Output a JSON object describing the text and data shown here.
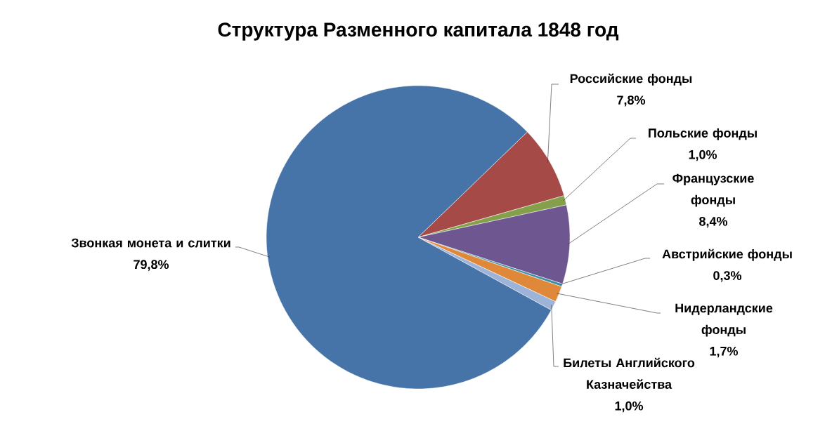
{
  "chart_data": {
    "type": "pie",
    "title": "Структура Разменного капитала 1848 год",
    "categories": [
      "Российские фонды",
      "Польские фонды",
      "Французские фонды",
      "Австрийские фонды",
      "Нидерландские фонды",
      "Билеты Английского Казначейства",
      "Звонкая монета и слитки"
    ],
    "values": [
      7.8,
      1.0,
      8.4,
      0.3,
      1.7,
      1.0,
      79.8
    ],
    "value_labels": [
      "7,8%",
      "1,0%",
      "8,4%",
      "0,3%",
      "1,7%",
      "1,0%",
      "79,8%"
    ],
    "colors": [
      "#a54a47",
      "#84a04a",
      "#6e5690",
      "#3f8fa7",
      "#e0883a",
      "#9db4d8",
      "#4673a8"
    ]
  }
}
